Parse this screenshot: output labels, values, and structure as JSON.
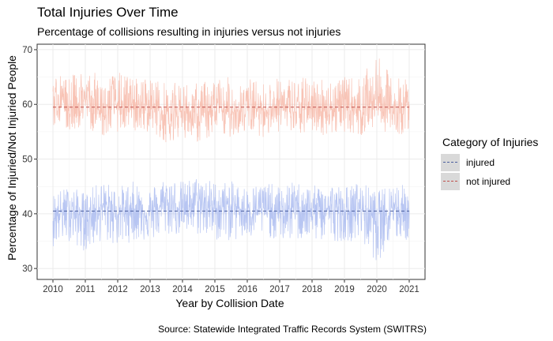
{
  "chart_data": {
    "type": "line",
    "title": "Total Injuries Over Time",
    "subtitle": "Percentage of collisions resulting in injuries versus not injuries",
    "xlabel": "Year by Collision Date",
    "ylabel": "Percentage of Injuried/Not Injuried People",
    "caption": "Source: Statewide Integrated Traffic Records System (SWITRS)",
    "legend_title": "Category of Injuries",
    "legend_position": "right",
    "grid": true,
    "xlim": [
      2010,
      2021
    ],
    "ylim": [
      28,
      71
    ],
    "x_ticks": [
      "2010",
      "2011",
      "2012",
      "2013",
      "2014",
      "2015",
      "2016",
      "2017",
      "2018",
      "2019",
      "2020",
      "2021"
    ],
    "y_ticks": [
      30,
      40,
      50,
      60,
      70
    ],
    "series": [
      {
        "name": "injured",
        "color": "#aabbf0",
        "mean": 40.5,
        "mean_line_color": "#4b5f9e",
        "x": [
          2010.0,
          2010.5,
          2011.0,
          2011.5,
          2012.0,
          2012.5,
          2013.0,
          2013.5,
          2014.0,
          2014.5,
          2015.0,
          2015.5,
          2016.0,
          2016.5,
          2017.0,
          2017.5,
          2018.0,
          2018.5,
          2019.0,
          2019.5,
          2020.0,
          2020.5,
          2021.0
        ],
        "values": [
          39.5,
          41.0,
          39.0,
          41.5,
          40.0,
          41.0,
          40.0,
          42.0,
          41.0,
          42.5,
          41.0,
          41.5,
          40.5,
          41.0,
          40.0,
          41.5,
          40.5,
          41.0,
          40.0,
          41.0,
          39.0,
          41.5,
          40.0
        ],
        "min": [
          34,
          35,
          33,
          35,
          34,
          35,
          35,
          36,
          36,
          36,
          35,
          35,
          35,
          36,
          35,
          35,
          35,
          35,
          35,
          35,
          31,
          35,
          35
        ],
        "max": [
          44,
          45,
          44,
          46,
          45,
          46,
          45,
          47,
          46,
          47,
          46,
          46,
          45,
          46,
          45,
          46,
          45,
          46,
          45,
          46,
          44,
          46,
          45
        ]
      },
      {
        "name": "not injured",
        "color": "#f7b8a8",
        "mean": 59.5,
        "mean_line_color": "#c0504d",
        "x": [
          2010.0,
          2010.5,
          2011.0,
          2011.5,
          2012.0,
          2012.5,
          2013.0,
          2013.5,
          2014.0,
          2014.5,
          2015.0,
          2015.5,
          2016.0,
          2016.5,
          2017.0,
          2017.5,
          2018.0,
          2018.5,
          2019.0,
          2019.5,
          2020.0,
          2020.5,
          2021.0
        ],
        "values": [
          60.5,
          59.0,
          61.0,
          58.5,
          60.0,
          59.0,
          60.0,
          58.0,
          59.0,
          57.5,
          59.0,
          58.5,
          59.5,
          59.0,
          60.0,
          58.5,
          59.5,
          59.0,
          60.0,
          59.0,
          61.0,
          58.5,
          60.0
        ],
        "min": [
          56,
          55,
          56,
          54,
          55,
          55,
          55,
          53,
          54,
          53,
          54,
          54,
          55,
          54,
          55,
          54,
          55,
          54,
          55,
          54,
          56,
          54,
          55
        ],
        "max": [
          66,
          65,
          67,
          65,
          66,
          65,
          65,
          64,
          64,
          64,
          65,
          65,
          65,
          64,
          65,
          65,
          65,
          65,
          65,
          65,
          69,
          65,
          65
        ]
      }
    ]
  }
}
